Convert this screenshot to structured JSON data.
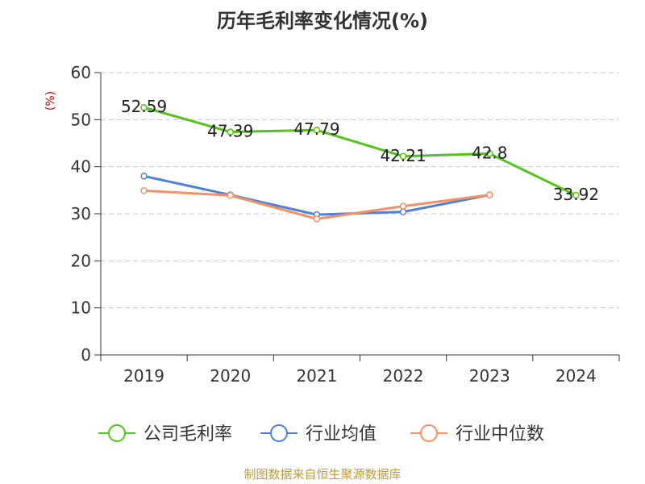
{
  "chart_data": {
    "type": "line",
    "title": "历年毛利率变化情况(%)",
    "ylabel": "(%)",
    "xlabel": "",
    "ylim": [
      0,
      60
    ],
    "yticks": [
      0,
      10,
      20,
      30,
      40,
      50,
      60
    ],
    "grid": true,
    "legend_position": "bottom",
    "categories": [
      "2019",
      "2020",
      "2021",
      "2022",
      "2023",
      "2024"
    ],
    "series": [
      {
        "name": "公司毛利率",
        "color": "#52c41a",
        "values": [
          52.59,
          47.39,
          47.79,
          42.21,
          42.8,
          33.92
        ],
        "labels": [
          "52.59",
          "47.39",
          "47.79",
          "42.21",
          "42.8",
          "33.92"
        ]
      },
      {
        "name": "行业均值",
        "color": "#4f81d9",
        "values": [
          38,
          34,
          29.8,
          30.4,
          34,
          null
        ]
      },
      {
        "name": "行业中位数",
        "color": "#f39064",
        "values": [
          34.9,
          33.9,
          28.9,
          31.6,
          34,
          null
        ]
      }
    ],
    "source_note": "制图数据来自恒生聚源数据库"
  }
}
